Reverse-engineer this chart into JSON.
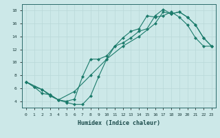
{
  "xlabel": "Humidex (Indice chaleur)",
  "bg_color": "#cce8e8",
  "line_color": "#1a7a6a",
  "grid_color": "#b8d8d8",
  "xlim": [
    -0.5,
    23.5
  ],
  "ylim": [
    3.0,
    19.0
  ],
  "yticks": [
    4,
    6,
    8,
    10,
    12,
    14,
    16,
    18
  ],
  "xticks": [
    0,
    1,
    2,
    3,
    4,
    5,
    6,
    7,
    8,
    9,
    10,
    11,
    12,
    13,
    14,
    15,
    16,
    17,
    18,
    19,
    20,
    21,
    22,
    23
  ],
  "line1_x": [
    0,
    1,
    2,
    3,
    4,
    5,
    6,
    7,
    8,
    9,
    10,
    11,
    12,
    13,
    14,
    15,
    16,
    17,
    18,
    19,
    20,
    21,
    22,
    23
  ],
  "line1_y": [
    7.0,
    6.2,
    5.8,
    4.8,
    4.2,
    4.0,
    4.3,
    7.8,
    10.5,
    10.5,
    11.0,
    12.5,
    13.8,
    14.8,
    15.2,
    17.2,
    17.0,
    17.2,
    17.8,
    17.0,
    15.8,
    13.8,
    12.5,
    12.5
  ],
  "line2_x": [
    0,
    1,
    2,
    3,
    4,
    5,
    6,
    7,
    8,
    9,
    10,
    11,
    12,
    13,
    14,
    15,
    16,
    17,
    18,
    19,
    20,
    21,
    22,
    23
  ],
  "line2_y": [
    7.0,
    6.2,
    5.2,
    5.0,
    4.2,
    3.8,
    3.5,
    3.5,
    4.8,
    7.8,
    10.5,
    12.5,
    13.0,
    13.8,
    14.8,
    15.2,
    17.2,
    18.2,
    17.5,
    17.8,
    17.0,
    15.8,
    13.8,
    12.5
  ],
  "line3_x": [
    0,
    2,
    4,
    6,
    8,
    10,
    12,
    14,
    16,
    17,
    18,
    19,
    20,
    21,
    22,
    23
  ],
  "line3_y": [
    7.0,
    5.8,
    4.2,
    5.5,
    8.0,
    10.5,
    12.5,
    14.0,
    16.0,
    17.8,
    17.5,
    17.8,
    17.0,
    15.8,
    13.8,
    12.5
  ]
}
